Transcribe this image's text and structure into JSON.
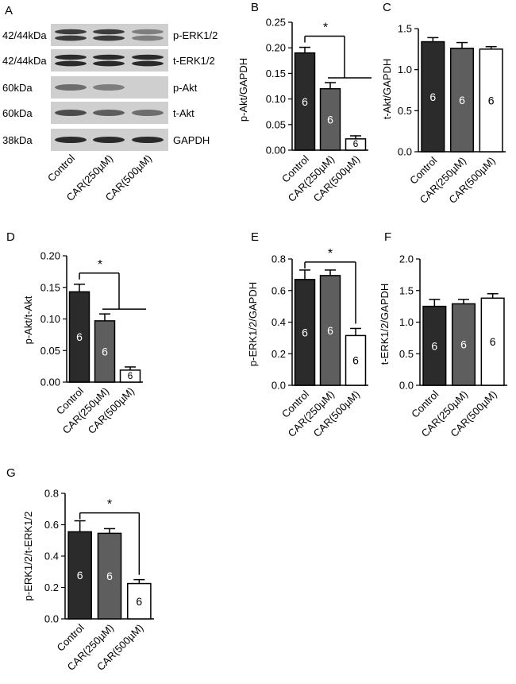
{
  "panel_letters": [
    "A",
    "B",
    "C",
    "D",
    "E",
    "F",
    "G"
  ],
  "western_blot": {
    "rows": [
      {
        "mw": "42/44kDa",
        "protein": "p-ERK1/2",
        "intensity": [
          0.85,
          0.85,
          0.45
        ]
      },
      {
        "mw": "42/44kDa",
        "protein": "t-ERK1/2",
        "intensity": [
          0.95,
          0.95,
          0.95
        ]
      },
      {
        "mw": "60kDa",
        "protein": "p-Akt",
        "intensity": [
          0.55,
          0.45,
          0.0
        ]
      },
      {
        "mw": "60kDa",
        "protein": "t-Akt",
        "intensity": [
          0.75,
          0.65,
          0.55
        ]
      },
      {
        "mw": "38kDa",
        "protein": "GAPDH",
        "intensity": [
          0.95,
          0.95,
          0.95
        ]
      }
    ],
    "lane_labels": [
      "Control",
      "CAR(250µM)",
      "CAR(500µM)"
    ]
  },
  "colors": {
    "control": "#2b2b2b",
    "car250": "#5e5e5e",
    "car500": "#ffffff",
    "axis": "#000000"
  },
  "chart_data": [
    {
      "panel": "B",
      "type": "bar",
      "ylabel": "p-Akt/GAPDH",
      "categories": [
        "Control",
        "CAR(250µM)",
        "CAR(500µM)"
      ],
      "values": [
        0.19,
        0.12,
        0.022
      ],
      "errors": [
        0.011,
        0.012,
        0.006
      ],
      "n_labels": [
        "6",
        "6",
        "6"
      ],
      "ylim": [
        0,
        0.25
      ],
      "yticks": [
        "0.00",
        "0.05",
        "0.10",
        "0.15",
        "0.20",
        "0.25"
      ],
      "significance": "*"
    },
    {
      "panel": "C",
      "type": "bar",
      "ylabel": "t-Akt/GAPDH",
      "categories": [
        "Control",
        "CAR(250µM)",
        "CAR(500µM)"
      ],
      "values": [
        1.34,
        1.26,
        1.25
      ],
      "errors": [
        0.05,
        0.07,
        0.03
      ],
      "n_labels": [
        "6",
        "6",
        "6"
      ],
      "ylim": [
        0,
        1.5
      ],
      "yticks": [
        "0.0",
        "0.5",
        "1.0",
        "1.5"
      ]
    },
    {
      "panel": "D",
      "type": "bar",
      "ylabel": "p-Akt/t-Akt",
      "categories": [
        "Control",
        "CAR(250µM)",
        "CAR(500µM)"
      ],
      "values": [
        0.143,
        0.097,
        0.019
      ],
      "errors": [
        0.012,
        0.011,
        0.005
      ],
      "n_labels": [
        "6",
        "6",
        "6"
      ],
      "ylim": [
        0,
        0.2
      ],
      "yticks": [
        "0.00",
        "0.05",
        "0.10",
        "0.15",
        "0.20"
      ],
      "significance": "*"
    },
    {
      "panel": "E",
      "type": "bar",
      "ylabel": "p-ERK1/2/GAPDH",
      "categories": [
        "Control",
        "CAR(250µM)",
        "CAR(500µM)"
      ],
      "values": [
        0.67,
        0.695,
        0.315
      ],
      "errors": [
        0.06,
        0.035,
        0.045
      ],
      "n_labels": [
        "6",
        "6",
        "6"
      ],
      "ylim": [
        0,
        0.8
      ],
      "yticks": [
        "0.0",
        "0.2",
        "0.4",
        "0.6",
        "0.8"
      ],
      "significance": "*"
    },
    {
      "panel": "F",
      "type": "bar",
      "ylabel": "t-ERK1/2/GAPDH",
      "categories": [
        "Control",
        "CAR(250µM)",
        "CAR(500µM)"
      ],
      "values": [
        1.25,
        1.29,
        1.38
      ],
      "errors": [
        0.11,
        0.07,
        0.07
      ],
      "n_labels": [
        "6",
        "6",
        "6"
      ],
      "ylim": [
        0,
        2.0
      ],
      "yticks": [
        "0.0",
        "0.5",
        "1.0",
        "1.5",
        "2.0"
      ]
    },
    {
      "panel": "G",
      "type": "bar",
      "ylabel": "p-ERK1/2/t-ERK1/2",
      "categories": [
        "Control",
        "CAR(250µM)",
        "CAR(500µM)"
      ],
      "values": [
        0.555,
        0.545,
        0.225
      ],
      "errors": [
        0.07,
        0.03,
        0.025
      ],
      "n_labels": [
        "6",
        "6",
        "6"
      ],
      "ylim": [
        0,
        0.8
      ],
      "yticks": [
        "0.0",
        "0.2",
        "0.4",
        "0.6",
        "0.8"
      ],
      "significance": "*"
    }
  ]
}
